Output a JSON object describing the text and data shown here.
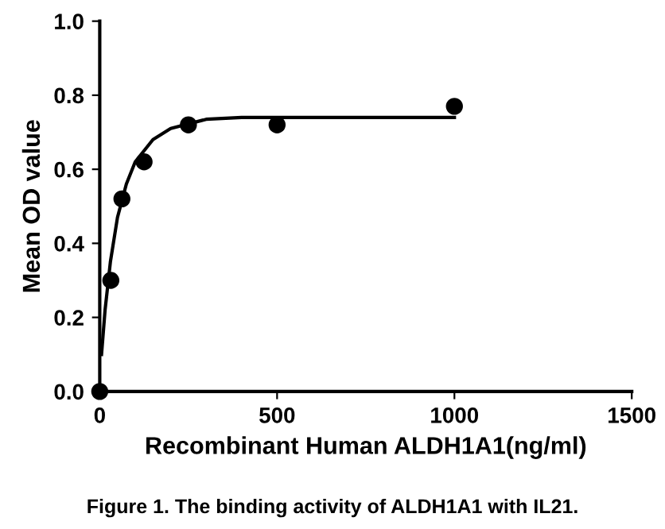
{
  "chart_data": {
    "type": "scatter",
    "xlabel": "Recombinant Human ALDH1A1(ng/ml)",
    "ylabel": "Mean OD value",
    "annotations": [
      "Figure 1. The binding activity of ALDH1A1 with IL21."
    ],
    "xlim": [
      0,
      1500
    ],
    "xticks": [
      0,
      500,
      1000,
      1500
    ],
    "ylim": [
      0,
      1.0
    ],
    "yticks": [
      {
        "value": 0,
        "label": "0.0"
      },
      {
        "value": 0.2,
        "label": "0.2"
      },
      {
        "value": 0.4,
        "label": "0.4"
      },
      {
        "value": 0.6,
        "label": "0.6"
      },
      {
        "value": 0.8,
        "label": "0.8"
      },
      {
        "value": 1.0,
        "label": "1.0"
      }
    ],
    "grid": false,
    "series": [
      {
        "color": "#000000",
        "marker": "circle",
        "x": [
          0,
          31.25,
          62.5,
          125,
          250,
          500,
          1000
        ],
        "values": [
          0.0,
          0.3,
          0.52,
          0.62,
          0.72,
          0.72,
          0.77
        ]
      },
      {
        "type": "line",
        "color": "#000000",
        "line_style": "solid",
        "marker": "none",
        "x": [
          5,
          15,
          30,
          50,
          75,
          100,
          150,
          200,
          300,
          400,
          1000
        ],
        "values": [
          0.1,
          0.22,
          0.35,
          0.47,
          0.56,
          0.62,
          0.68,
          0.71,
          0.735,
          0.74,
          0.74
        ]
      }
    ]
  }
}
